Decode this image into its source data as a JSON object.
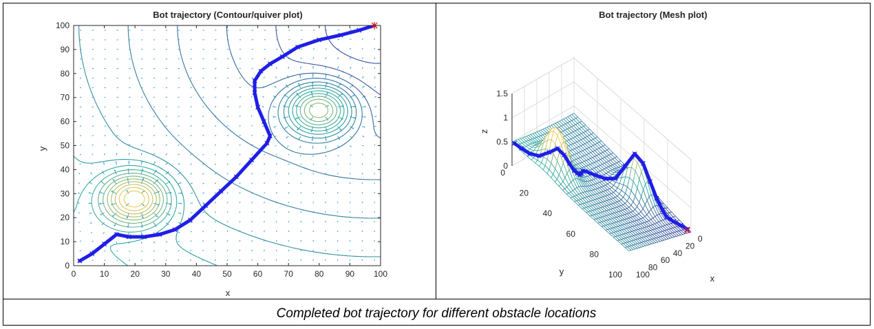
{
  "caption": "Completed bot trajectory for different obstacle locations",
  "colors": {
    "trajectory": "#1f1fe6",
    "start_end_marker": "#e02020",
    "quiver": "#2a9fc7",
    "contour_low": "#3b3b9a",
    "contour_mid": "#2aaaa0",
    "contour_high": "#f2c94c",
    "axis": "#262626",
    "grid": "#dcdcdc"
  },
  "chart_data": [
    {
      "type": "contour",
      "title": "Bot trajectory (Contour/quiver plot)",
      "xlabel": "x",
      "ylabel": "y",
      "xlim": [
        0,
        100
      ],
      "ylim": [
        0,
        100
      ],
      "xticks": [
        "0",
        "10",
        "20",
        "30",
        "40",
        "50",
        "60",
        "70",
        "80",
        "90",
        "100"
      ],
      "yticks": [
        "0",
        "10",
        "20",
        "30",
        "40",
        "50",
        "60",
        "70",
        "80",
        "90",
        "100"
      ],
      "obstacles": [
        {
          "x": 20,
          "y": 28
        },
        {
          "x": 80,
          "y": 65
        }
      ],
      "trajectory": {
        "x": [
          2,
          6,
          10,
          14,
          18,
          23,
          28,
          33,
          38,
          43,
          48,
          53,
          58,
          63,
          64,
          62,
          60,
          59,
          59,
          61,
          64,
          68,
          73,
          80,
          87,
          93,
          98
        ],
        "y": [
          2,
          5,
          9,
          13,
          12,
          12,
          13,
          15,
          19,
          25,
          31,
          37,
          44,
          51,
          54,
          60,
          66,
          72,
          77,
          81,
          84,
          87,
          91,
          94,
          96,
          98,
          100
        ]
      },
      "goal": {
        "x": 98,
        "y": 100
      }
    },
    {
      "type": "mesh",
      "title": "Bot trajectory (Mesh plot)",
      "xlabel": "x",
      "ylabel": "y",
      "zlabel": "z",
      "xticks": [
        "0",
        "20",
        "40",
        "60",
        "80",
        "100"
      ],
      "yticks": [
        "0",
        "20",
        "40",
        "60",
        "80",
        "100"
      ],
      "zticks": [
        "0",
        "0.5",
        "1",
        "1.5"
      ],
      "xlim": [
        0,
        100
      ],
      "ylim": [
        0,
        100
      ],
      "zlim": [
        0,
        1.5
      ],
      "peaks": [
        {
          "x": 20,
          "y": 28,
          "z": 0.85
        },
        {
          "x": 80,
          "y": 65,
          "z": 0.85
        }
      ],
      "trajectory": {
        "x": [
          2,
          6,
          10,
          14,
          18,
          23,
          28,
          33,
          38,
          43,
          48,
          53,
          58,
          63,
          64,
          62,
          60,
          59,
          59,
          61,
          64,
          68,
          73,
          80,
          87,
          93,
          98
        ],
        "y": [
          2,
          5,
          9,
          13,
          12,
          12,
          13,
          15,
          19,
          25,
          31,
          37,
          44,
          51,
          54,
          60,
          66,
          72,
          77,
          81,
          84,
          87,
          91,
          94,
          96,
          98,
          100
        ]
      }
    }
  ]
}
